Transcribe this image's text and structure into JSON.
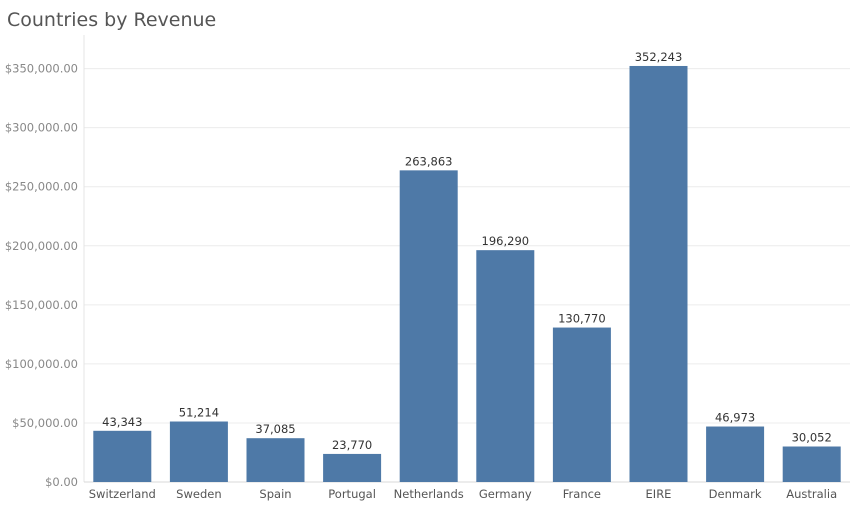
{
  "chart_data": {
    "type": "bar",
    "title": "Countries by Revenue",
    "xlabel": "",
    "ylabel": "",
    "categories": [
      "Switzerland",
      "Sweden",
      "Spain",
      "Portugal",
      "Netherlands",
      "Germany",
      "France",
      "EIRE",
      "Denmark",
      "Australia"
    ],
    "values": [
      43343,
      51214,
      37085,
      23770,
      263863,
      196290,
      130770,
      352243,
      46973,
      30052
    ],
    "data_labels": [
      "43,343",
      "51,214",
      "37,085",
      "23,770",
      "263,863",
      "196,290",
      "130,770",
      "352,243",
      "46,973",
      "30,052"
    ],
    "ylim": [
      0,
      370000
    ],
    "yticks": [
      0,
      50000,
      100000,
      150000,
      200000,
      250000,
      300000,
      350000
    ],
    "ytick_labels": [
      "$0.00",
      "$50,000.00",
      "$100,000.00",
      "$150,000.00",
      "$200,000.00",
      "$250,000.00",
      "$300,000.00",
      "$350,000.00"
    ],
    "grid": true,
    "legend": "none",
    "bar_color": "#4e79a7"
  }
}
